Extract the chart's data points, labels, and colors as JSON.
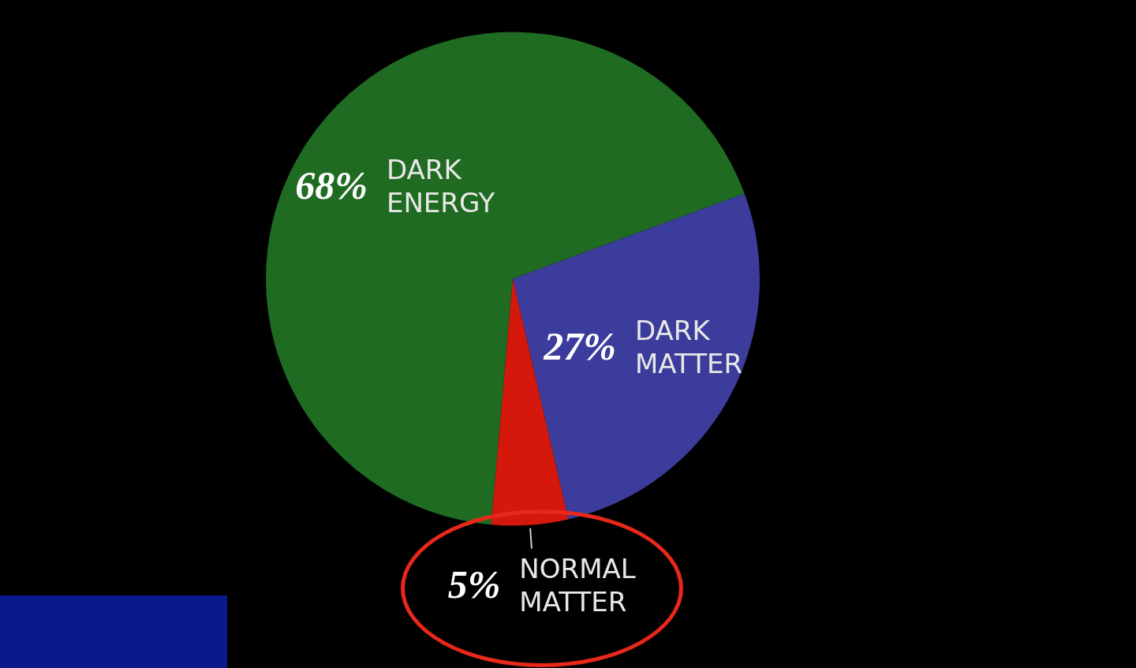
{
  "chart_data": {
    "type": "pie",
    "categories": [
      "DARK ENERGY",
      "DARK MATTER",
      "NORMAL MATTER"
    ],
    "values": [
      68,
      27,
      5
    ],
    "colors": [
      "#1f6b22",
      "#3c3c9c",
      "#d4180c"
    ],
    "value_labels": [
      "68%",
      "27%",
      "5%"
    ],
    "legend": false
  }
}
